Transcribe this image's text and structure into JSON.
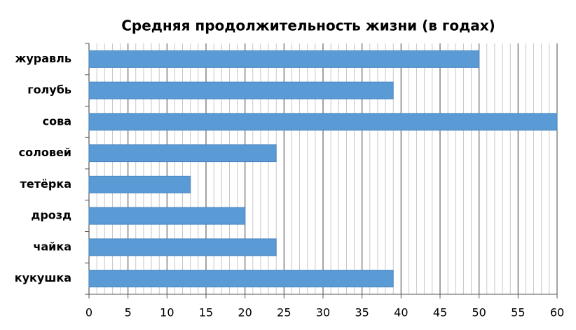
{
  "chart_data": {
    "type": "bar",
    "orientation": "horizontal",
    "title": "Средняя продолжительность жизни (в годах)",
    "categories": [
      "журавль",
      "голубь",
      "сова",
      "соловей",
      "тетёрка",
      "дрозд",
      "чайка",
      "кукушка"
    ],
    "values": [
      50,
      39,
      60,
      24,
      13,
      20,
      24,
      39
    ],
    "color": "#5b9bd5",
    "xlim": [
      0,
      60
    ],
    "xticks": [
      0,
      5,
      10,
      15,
      20,
      25,
      30,
      35,
      40,
      45,
      50,
      55,
      60
    ],
    "xminorticks": [
      0,
      1,
      2,
      3,
      4,
      5,
      6,
      7,
      8,
      9,
      10,
      11,
      12,
      13,
      14,
      15,
      16,
      17,
      18,
      19,
      20,
      21,
      22,
      23,
      24,
      25,
      26,
      27,
      28,
      29,
      30,
      31,
      32,
      33,
      34,
      35,
      36,
      37,
      38,
      39,
      40,
      41,
      42,
      43,
      44,
      45,
      46,
      47,
      48,
      49,
      50,
      51,
      52,
      53,
      54,
      55,
      56,
      57,
      58,
      59,
      60
    ],
    "grid": true
  }
}
